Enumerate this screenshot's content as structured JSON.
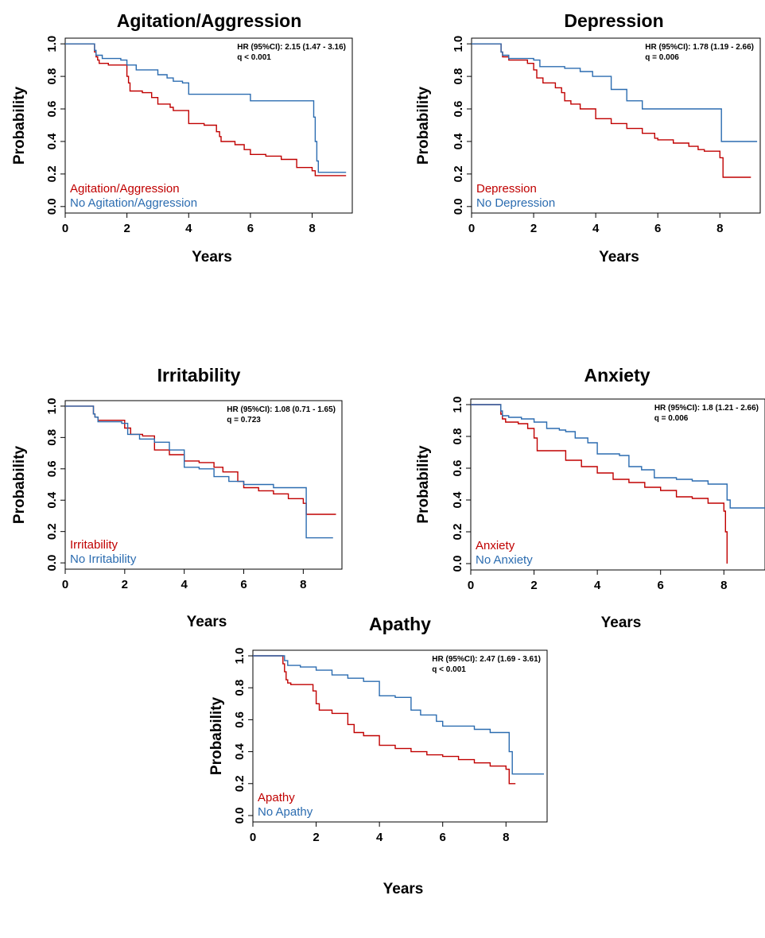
{
  "figure": {
    "colors": {
      "event": "#c00000",
      "none": "#2b6cb0"
    },
    "xlabel": "Years",
    "ylabel": "Probability"
  },
  "chart_data": [
    {
      "type": "line",
      "title": "Agitation/Aggression",
      "xlabel": "Years",
      "ylabel": "Probability",
      "xlim": [
        0,
        9.3
      ],
      "ylim": [
        0,
        1
      ],
      "xticks": [
        "0",
        "2",
        "4",
        "6",
        "8"
      ],
      "yticks": [
        "0.0",
        "0.2",
        "0.4",
        "0.6",
        "0.8",
        "1.0"
      ],
      "annotation": [
        "HR (95%CI): 2.15 (1.47 - 3.16)",
        "q < 0.001"
      ],
      "legend": [
        "Agitation/Aggression",
        "No Agitation/Aggression"
      ],
      "series": [
        {
          "name": "Agitation/Aggression",
          "x": [
            0,
            0.95,
            1.0,
            1.05,
            1.1,
            1.4,
            2.0,
            2.05,
            2.1,
            2.5,
            2.8,
            3.0,
            3.4,
            3.5,
            4.0,
            4.5,
            4.9,
            5.0,
            5.05,
            5.5,
            5.8,
            6.0,
            6.5,
            7.0,
            7.5,
            8.0,
            8.1,
            9.1
          ],
          "y": [
            1,
            0.95,
            0.92,
            0.9,
            0.88,
            0.87,
            0.8,
            0.76,
            0.71,
            0.7,
            0.67,
            0.63,
            0.61,
            0.59,
            0.51,
            0.5,
            0.46,
            0.43,
            0.4,
            0.38,
            0.35,
            0.32,
            0.31,
            0.29,
            0.24,
            0.22,
            0.19,
            0.19
          ]
        },
        {
          "name": "No Agitation/Aggression",
          "x": [
            0,
            0.95,
            1.0,
            1.2,
            1.8,
            2.0,
            2.3,
            2.5,
            3.0,
            3.3,
            3.5,
            3.8,
            4.0,
            6.0,
            8.0,
            8.05,
            8.1,
            8.15,
            8.2,
            9.1
          ],
          "y": [
            1,
            0.96,
            0.93,
            0.91,
            0.9,
            0.87,
            0.84,
            0.84,
            0.81,
            0.79,
            0.77,
            0.76,
            0.69,
            0.65,
            0.65,
            0.55,
            0.4,
            0.28,
            0.21,
            0.21
          ]
        }
      ]
    },
    {
      "type": "line",
      "title": "Depression",
      "xlabel": "Years",
      "ylabel": "Probability",
      "xlim": [
        0,
        9.3
      ],
      "ylim": [
        0,
        1
      ],
      "xticks": [
        "0",
        "2",
        "4",
        "6",
        "8"
      ],
      "yticks": [
        "0.0",
        "0.2",
        "0.4",
        "0.6",
        "0.8",
        "1.0"
      ],
      "annotation": [
        "HR (95%CI): 1.78 (1.19 - 2.66)",
        "q = 0.006"
      ],
      "legend": [
        "Depression",
        "No Depression"
      ],
      "series": [
        {
          "name": "Depression",
          "x": [
            0,
            0.95,
            1.0,
            1.2,
            1.8,
            2.0,
            2.1,
            2.3,
            2.7,
            2.9,
            3.0,
            3.2,
            3.5,
            4.0,
            4.5,
            5.0,
            5.5,
            5.9,
            6.0,
            6.5,
            7.0,
            7.3,
            7.5,
            8.0,
            8.1,
            9.0
          ],
          "y": [
            1,
            0.95,
            0.92,
            0.9,
            0.88,
            0.84,
            0.79,
            0.76,
            0.73,
            0.7,
            0.65,
            0.63,
            0.6,
            0.54,
            0.51,
            0.48,
            0.45,
            0.42,
            0.41,
            0.39,
            0.37,
            0.35,
            0.34,
            0.3,
            0.18,
            0.18
          ]
        },
        {
          "name": "No Depression",
          "x": [
            0,
            0.95,
            1.0,
            1.2,
            2.0,
            2.2,
            3.0,
            3.5,
            3.9,
            4.5,
            5.0,
            5.5,
            8.0,
            8.05,
            9.2
          ],
          "y": [
            1,
            0.95,
            0.93,
            0.91,
            0.9,
            0.86,
            0.85,
            0.83,
            0.8,
            0.72,
            0.65,
            0.6,
            0.6,
            0.4,
            0.4
          ]
        }
      ]
    },
    {
      "type": "line",
      "title": "Irritability",
      "xlabel": "Years",
      "ylabel": "Probability",
      "xlim": [
        0,
        9.3
      ],
      "ylim": [
        0,
        1
      ],
      "xticks": [
        "0",
        "2",
        "4",
        "6",
        "8"
      ],
      "yticks": [
        "0.0",
        "0.2",
        "0.4",
        "0.6",
        "0.8",
        "1.0"
      ],
      "annotation": [
        "HR (95%CI): 1.08 (0.71 - 1.65)",
        "q = 0.723"
      ],
      "legend": [
        "Irritability",
        "No Irritability"
      ],
      "series": [
        {
          "name": "Irritability",
          "x": [
            0,
            0.95,
            1.0,
            1.1,
            1.5,
            2.0,
            2.2,
            2.6,
            3.0,
            3.5,
            4.0,
            4.5,
            5.0,
            5.3,
            5.8,
            6.0,
            6.5,
            7.0,
            7.5,
            8.0,
            8.1,
            9.1
          ],
          "y": [
            1,
            0.95,
            0.93,
            0.91,
            0.91,
            0.86,
            0.82,
            0.81,
            0.72,
            0.69,
            0.65,
            0.64,
            0.61,
            0.58,
            0.52,
            0.48,
            0.46,
            0.44,
            0.41,
            0.38,
            0.31,
            0.31
          ]
        },
        {
          "name": "No Irritability",
          "x": [
            0,
            0.95,
            1.0,
            1.1,
            1.9,
            2.1,
            2.5,
            3.0,
            3.5,
            4.0,
            4.5,
            5.0,
            5.5,
            6.0,
            6.5,
            7.0,
            8.0,
            8.1,
            9.0
          ],
          "y": [
            1,
            0.95,
            0.93,
            0.9,
            0.89,
            0.82,
            0.79,
            0.77,
            0.72,
            0.61,
            0.6,
            0.55,
            0.52,
            0.5,
            0.5,
            0.48,
            0.48,
            0.16,
            0.16
          ]
        }
      ]
    },
    {
      "type": "line",
      "title": "Anxiety",
      "xlabel": "Years",
      "ylabel": "Probability",
      "xlim": [
        0,
        9.3
      ],
      "ylim": [
        0,
        1
      ],
      "xticks": [
        "0",
        "2",
        "4",
        "6",
        "8"
      ],
      "yticks": [
        "0.0",
        "0.2",
        "0.4",
        "0.6",
        "0.8",
        "1.0"
      ],
      "annotation": [
        "HR (95%CI): 1.8 (1.21 - 2.66)",
        "q = 0.006"
      ],
      "legend": [
        "Anxiety",
        "No Anxiety"
      ],
      "series": [
        {
          "name": "Anxiety",
          "x": [
            0,
            0.95,
            1.0,
            1.1,
            1.5,
            1.8,
            2.0,
            2.1,
            3.0,
            3.5,
            4.0,
            4.5,
            5.0,
            5.5,
            6.0,
            6.5,
            7.0,
            7.5,
            8.0,
            8.05,
            8.1
          ],
          "y": [
            1,
            0.94,
            0.91,
            0.89,
            0.88,
            0.85,
            0.79,
            0.71,
            0.65,
            0.61,
            0.57,
            0.53,
            0.51,
            0.48,
            0.46,
            0.42,
            0.41,
            0.38,
            0.33,
            0.2,
            0
          ]
        },
        {
          "name": "No Anxiety",
          "x": [
            0,
            0.95,
            1.0,
            1.2,
            1.6,
            2.0,
            2.4,
            2.8,
            3.0,
            3.3,
            3.7,
            4.0,
            4.7,
            5.0,
            5.4,
            5.8,
            6.0,
            6.5,
            7.0,
            7.5,
            8.0,
            8.1,
            8.2,
            9.3
          ],
          "y": [
            1,
            0.96,
            0.93,
            0.92,
            0.91,
            0.89,
            0.85,
            0.84,
            0.83,
            0.79,
            0.76,
            0.69,
            0.68,
            0.61,
            0.59,
            0.54,
            0.54,
            0.53,
            0.52,
            0.5,
            0.5,
            0.4,
            0.35,
            0.35
          ]
        }
      ]
    },
    {
      "type": "line",
      "title": "Apathy",
      "xlabel": "Years",
      "ylabel": "Probability",
      "xlim": [
        0,
        9.3
      ],
      "ylim": [
        0,
        1
      ],
      "xticks": [
        "0",
        "2",
        "4",
        "6",
        "8"
      ],
      "yticks": [
        "0.0",
        "0.2",
        "0.4",
        "0.6",
        "0.8",
        "1.0"
      ],
      "annotation": [
        "HR (95%CI): 2.47 (1.69 - 3.61)",
        "q < 0.001"
      ],
      "legend": [
        "Apathy",
        "No Apathy"
      ],
      "series": [
        {
          "name": "Apathy",
          "x": [
            0,
            0.95,
            1.0,
            1.05,
            1.1,
            1.2,
            1.9,
            2.0,
            2.1,
            2.5,
            3.0,
            3.2,
            3.5,
            4.0,
            4.5,
            5.0,
            5.5,
            6.0,
            6.5,
            7.0,
            7.5,
            8.0,
            8.1,
            8.3
          ],
          "y": [
            1,
            0.95,
            0.9,
            0.85,
            0.83,
            0.82,
            0.78,
            0.7,
            0.66,
            0.64,
            0.57,
            0.52,
            0.5,
            0.44,
            0.42,
            0.4,
            0.38,
            0.37,
            0.35,
            0.33,
            0.31,
            0.29,
            0.2,
            0.2
          ]
        },
        {
          "name": "No Apathy",
          "x": [
            0,
            1.0,
            1.1,
            1.5,
            2.0,
            2.5,
            3.0,
            3.5,
            4.0,
            4.5,
            5.0,
            5.3,
            5.8,
            6.0,
            6.5,
            7.0,
            7.5,
            8.0,
            8.1,
            8.2,
            9.2
          ],
          "y": [
            1,
            0.97,
            0.94,
            0.93,
            0.91,
            0.88,
            0.86,
            0.84,
            0.75,
            0.74,
            0.66,
            0.63,
            0.59,
            0.56,
            0.56,
            0.54,
            0.52,
            0.52,
            0.4,
            0.26,
            0.26
          ]
        }
      ]
    }
  ]
}
